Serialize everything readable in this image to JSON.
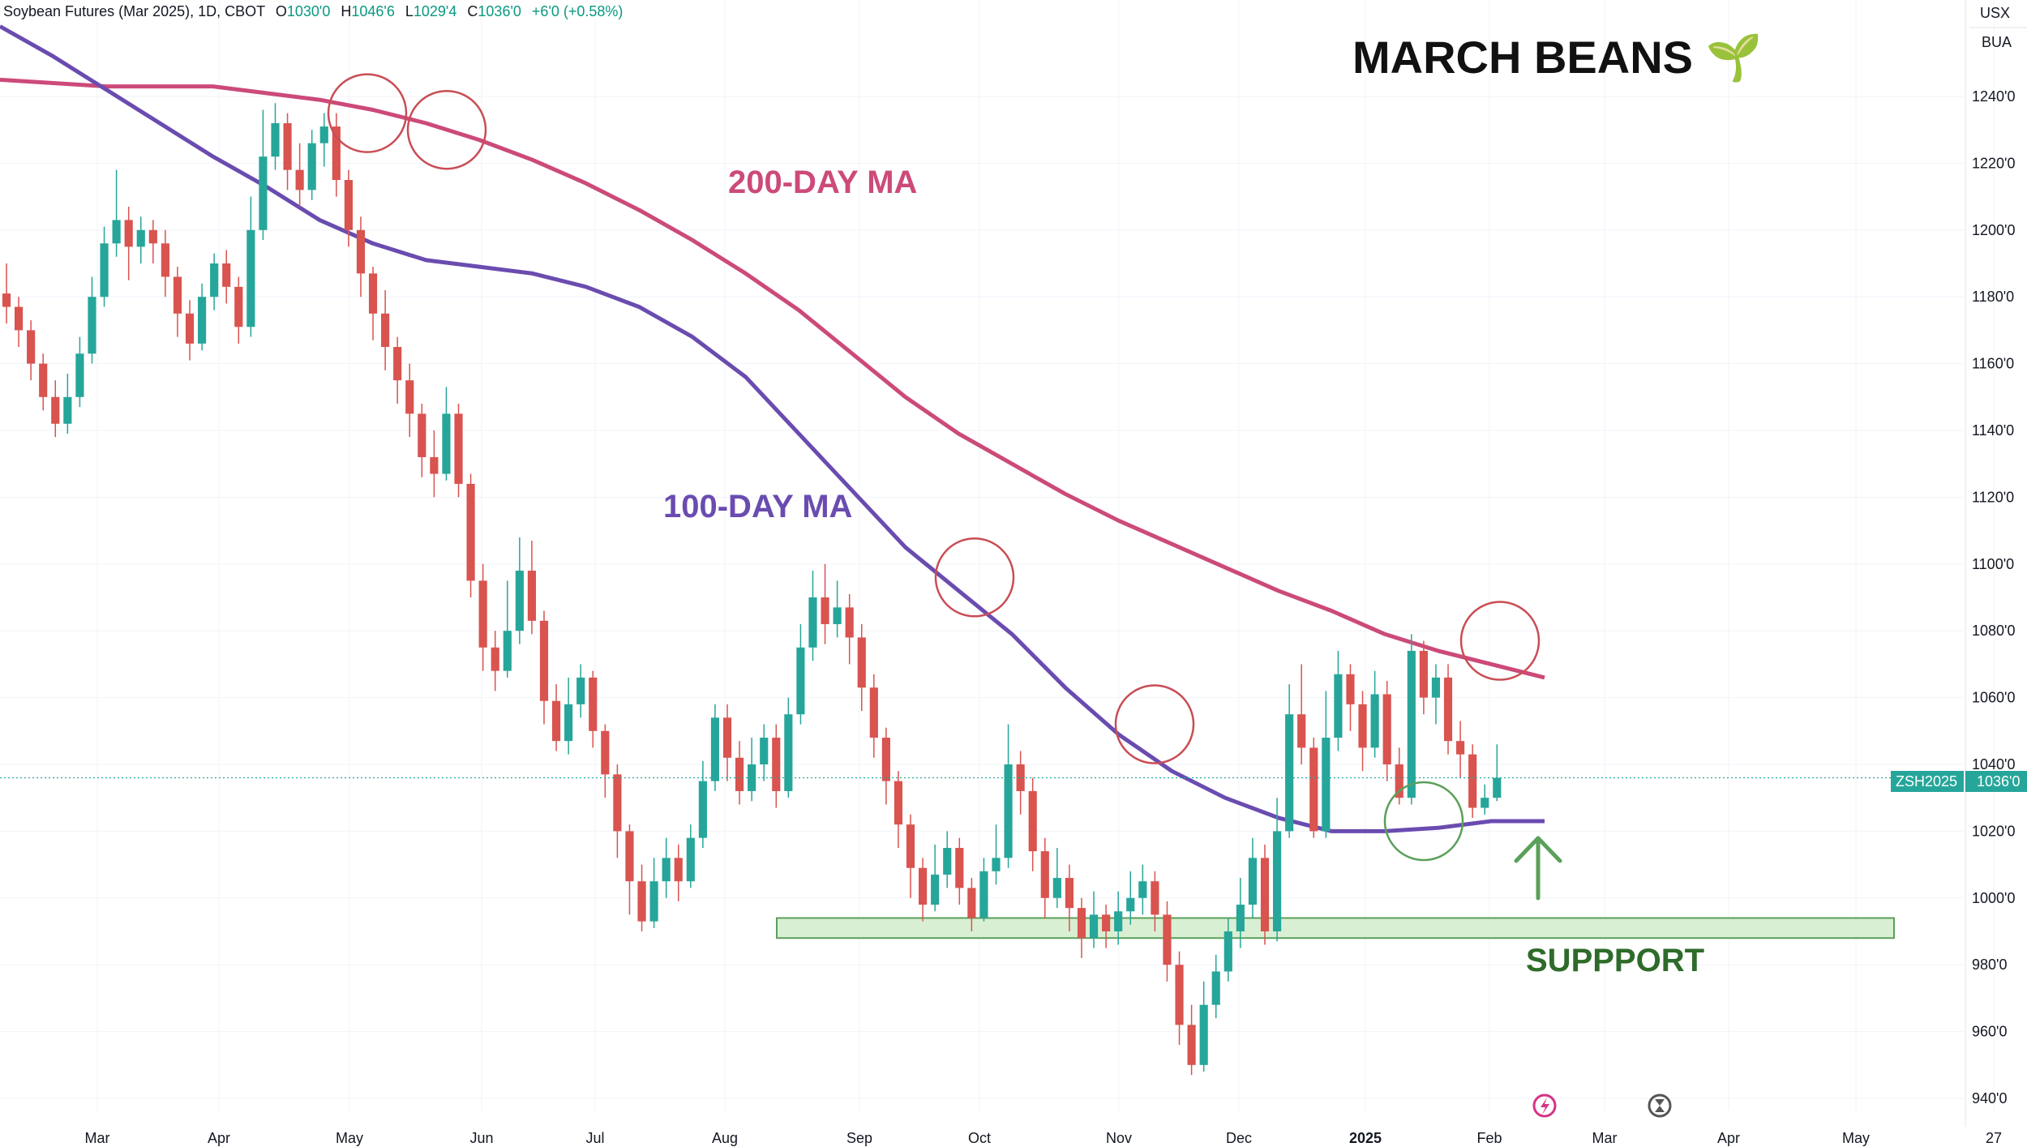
{
  "header": {
    "symbol": "Soybean Futures (Mar 2025), 1D, CBOT",
    "o_label": "O",
    "o_value": "1030'0",
    "h_label": "H",
    "h_value": "1046'6",
    "l_label": "L",
    "l_value": "1029'4",
    "c_label": "C",
    "c_value": "1036'0",
    "change": "+6'0 (+0.58%)"
  },
  "axis_badges": {
    "currency": "USX",
    "unit": "BUA"
  },
  "price_tag": {
    "symbol": "ZSH2025",
    "value": "1036'0"
  },
  "colors": {
    "up": "#26a69a",
    "down": "#d9534f",
    "ma200": "#cc4a7a",
    "ma100": "#6a4cb0",
    "circle_red": "#c94d55",
    "circle_green": "#5aa05a",
    "support_fill": "#d9efd3",
    "support_stroke": "#5aa05a"
  },
  "chart_data": {
    "type": "candlestick",
    "title": "MARCH BEANS 🌱",
    "annotations": {
      "ma200_label": "200-DAY MA",
      "ma100_label": "100-DAY MA",
      "support_label": "SUPPPORT"
    },
    "y_ticks": [
      "1240'0",
      "1220'0",
      "1200'0",
      "1180'0",
      "1160'0",
      "1140'0",
      "1120'0",
      "1100'0",
      "1080'0",
      "1060'0",
      "1040'0",
      "1020'0",
      "1000'0",
      "980'0",
      "960'0",
      "940'0"
    ],
    "x_ticks": [
      {
        "label": "Mar",
        "bold": false
      },
      {
        "label": "Apr",
        "bold": false
      },
      {
        "label": "May",
        "bold": false
      },
      {
        "label": "Jun",
        "bold": false
      },
      {
        "label": "Jul",
        "bold": false
      },
      {
        "label": "Aug",
        "bold": false
      },
      {
        "label": "Sep",
        "bold": false
      },
      {
        "label": "Oct",
        "bold": false
      },
      {
        "label": "Nov",
        "bold": false
      },
      {
        "label": "Dec",
        "bold": false
      },
      {
        "label": "2025",
        "bold": true
      },
      {
        "label": "Feb",
        "bold": false
      },
      {
        "label": "Mar",
        "bold": false
      },
      {
        "label": "Apr",
        "bold": false
      },
      {
        "label": "May",
        "bold": false
      },
      {
        "label": "27",
        "bold": false
      }
    ],
    "y_range": [
      936,
      1262
    ],
    "last_price": 1036,
    "support_zone": [
      988,
      994
    ],
    "ma200": [
      1245,
      1244,
      1243,
      1243,
      1243,
      1241,
      1239,
      1236,
      1232,
      1227,
      1221,
      1214,
      1206,
      1197,
      1187,
      1176,
      1163,
      1150,
      1139,
      1130,
      1121,
      1113,
      1106,
      1099,
      1092,
      1086,
      1079,
      1074,
      1070,
      1066
    ],
    "ma100": [
      1261,
      1252,
      1242,
      1232,
      1222,
      1213,
      1203,
      1196,
      1191,
      1189,
      1187,
      1183,
      1177,
      1168,
      1156,
      1139,
      1122,
      1105,
      1092,
      1079,
      1063,
      1049,
      1038,
      1030,
      1024,
      1020,
      1020,
      1021,
      1023,
      1023
    ],
    "candles": [
      {
        "o": 1181,
        "c": 1177,
        "h": 1190,
        "l": 1172
      },
      {
        "o": 1177,
        "c": 1170,
        "h": 1180,
        "l": 1165
      },
      {
        "o": 1170,
        "c": 1160,
        "h": 1173,
        "l": 1155
      },
      {
        "o": 1160,
        "c": 1150,
        "h": 1163,
        "l": 1146
      },
      {
        "o": 1150,
        "c": 1142,
        "h": 1155,
        "l": 1138
      },
      {
        "o": 1142,
        "c": 1150,
        "h": 1157,
        "l": 1139
      },
      {
        "o": 1150,
        "c": 1163,
        "h": 1168,
        "l": 1147
      },
      {
        "o": 1163,
        "c": 1180,
        "h": 1186,
        "l": 1160
      },
      {
        "o": 1180,
        "c": 1196,
        "h": 1201,
        "l": 1177
      },
      {
        "o": 1196,
        "c": 1203,
        "h": 1218,
        "l": 1192
      },
      {
        "o": 1203,
        "c": 1195,
        "h": 1207,
        "l": 1185
      },
      {
        "o": 1195,
        "c": 1200,
        "h": 1204,
        "l": 1190
      },
      {
        "o": 1200,
        "c": 1196,
        "h": 1203,
        "l": 1190
      },
      {
        "o": 1196,
        "c": 1186,
        "h": 1200,
        "l": 1180
      },
      {
        "o": 1186,
        "c": 1175,
        "h": 1189,
        "l": 1168
      },
      {
        "o": 1175,
        "c": 1166,
        "h": 1179,
        "l": 1161
      },
      {
        "o": 1166,
        "c": 1180,
        "h": 1184,
        "l": 1164
      },
      {
        "o": 1180,
        "c": 1190,
        "h": 1193,
        "l": 1176
      },
      {
        "o": 1190,
        "c": 1183,
        "h": 1194,
        "l": 1178
      },
      {
        "o": 1183,
        "c": 1171,
        "h": 1186,
        "l": 1166
      },
      {
        "o": 1171,
        "c": 1200,
        "h": 1210,
        "l": 1168
      },
      {
        "o": 1200,
        "c": 1222,
        "h": 1236,
        "l": 1197
      },
      {
        "o": 1222,
        "c": 1232,
        "h": 1238,
        "l": 1218
      },
      {
        "o": 1232,
        "c": 1218,
        "h": 1235,
        "l": 1212
      },
      {
        "o": 1218,
        "c": 1212,
        "h": 1226,
        "l": 1207
      },
      {
        "o": 1212,
        "c": 1226,
        "h": 1230,
        "l": 1209
      },
      {
        "o": 1226,
        "c": 1231,
        "h": 1235,
        "l": 1219
      },
      {
        "o": 1231,
        "c": 1215,
        "h": 1235,
        "l": 1210
      },
      {
        "o": 1215,
        "c": 1200,
        "h": 1218,
        "l": 1195
      },
      {
        "o": 1200,
        "c": 1187,
        "h": 1204,
        "l": 1180
      },
      {
        "o": 1187,
        "c": 1175,
        "h": 1189,
        "l": 1167
      },
      {
        "o": 1175,
        "c": 1165,
        "h": 1182,
        "l": 1158
      },
      {
        "o": 1165,
        "c": 1155,
        "h": 1168,
        "l": 1148
      },
      {
        "o": 1155,
        "c": 1145,
        "h": 1160,
        "l": 1138
      },
      {
        "o": 1145,
        "c": 1132,
        "h": 1148,
        "l": 1126
      },
      {
        "o": 1132,
        "c": 1127,
        "h": 1140,
        "l": 1120
      },
      {
        "o": 1127,
        "c": 1145,
        "h": 1153,
        "l": 1125
      },
      {
        "o": 1145,
        "c": 1124,
        "h": 1148,
        "l": 1120
      },
      {
        "o": 1124,
        "c": 1095,
        "h": 1127,
        "l": 1090
      },
      {
        "o": 1095,
        "c": 1075,
        "h": 1100,
        "l": 1068
      },
      {
        "o": 1075,
        "c": 1068,
        "h": 1080,
        "l": 1062
      },
      {
        "o": 1068,
        "c": 1080,
        "h": 1095,
        "l": 1066
      },
      {
        "o": 1080,
        "c": 1098,
        "h": 1108,
        "l": 1076
      },
      {
        "o": 1098,
        "c": 1083,
        "h": 1107,
        "l": 1079
      },
      {
        "o": 1083,
        "c": 1059,
        "h": 1086,
        "l": 1052
      },
      {
        "o": 1059,
        "c": 1047,
        "h": 1064,
        "l": 1044
      },
      {
        "o": 1047,
        "c": 1058,
        "h": 1066,
        "l": 1043
      },
      {
        "o": 1058,
        "c": 1066,
        "h": 1070,
        "l": 1054
      },
      {
        "o": 1066,
        "c": 1050,
        "h": 1068,
        "l": 1045
      },
      {
        "o": 1050,
        "c": 1037,
        "h": 1052,
        "l": 1030
      },
      {
        "o": 1037,
        "c": 1020,
        "h": 1040,
        "l": 1012
      },
      {
        "o": 1020,
        "c": 1005,
        "h": 1022,
        "l": 995
      },
      {
        "o": 1005,
        "c": 993,
        "h": 1010,
        "l": 990
      },
      {
        "o": 993,
        "c": 1005,
        "h": 1012,
        "l": 991
      },
      {
        "o": 1005,
        "c": 1012,
        "h": 1018,
        "l": 1000
      },
      {
        "o": 1012,
        "c": 1005,
        "h": 1016,
        "l": 999
      },
      {
        "o": 1005,
        "c": 1018,
        "h": 1022,
        "l": 1003
      },
      {
        "o": 1018,
        "c": 1035,
        "h": 1041,
        "l": 1015
      },
      {
        "o": 1035,
        "c": 1054,
        "h": 1058,
        "l": 1032
      },
      {
        "o": 1054,
        "c": 1042,
        "h": 1058,
        "l": 1035
      },
      {
        "o": 1042,
        "c": 1032,
        "h": 1047,
        "l": 1028
      },
      {
        "o": 1032,
        "c": 1040,
        "h": 1048,
        "l": 1029
      },
      {
        "o": 1040,
        "c": 1048,
        "h": 1052,
        "l": 1035
      },
      {
        "o": 1048,
        "c": 1032,
        "h": 1052,
        "l": 1027
      },
      {
        "o": 1032,
        "c": 1055,
        "h": 1060,
        "l": 1030
      },
      {
        "o": 1055,
        "c": 1075,
        "h": 1082,
        "l": 1052
      },
      {
        "o": 1075,
        "c": 1090,
        "h": 1098,
        "l": 1071
      },
      {
        "o": 1090,
        "c": 1082,
        "h": 1100,
        "l": 1076
      },
      {
        "o": 1082,
        "c": 1087,
        "h": 1095,
        "l": 1078
      },
      {
        "o": 1087,
        "c": 1078,
        "h": 1091,
        "l": 1070
      },
      {
        "o": 1078,
        "c": 1063,
        "h": 1082,
        "l": 1056
      },
      {
        "o": 1063,
        "c": 1048,
        "h": 1067,
        "l": 1042
      },
      {
        "o": 1048,
        "c": 1035,
        "h": 1051,
        "l": 1028
      },
      {
        "o": 1035,
        "c": 1022,
        "h": 1038,
        "l": 1015
      },
      {
        "o": 1022,
        "c": 1009,
        "h": 1025,
        "l": 1000
      },
      {
        "o": 1009,
        "c": 998,
        "h": 1012,
        "l": 993
      },
      {
        "o": 998,
        "c": 1007,
        "h": 1016,
        "l": 996
      },
      {
        "o": 1007,
        "c": 1015,
        "h": 1020,
        "l": 1003
      },
      {
        "o": 1015,
        "c": 1003,
        "h": 1018,
        "l": 998
      },
      {
        "o": 1003,
        "c": 994,
        "h": 1006,
        "l": 990
      },
      {
        "o": 994,
        "c": 1008,
        "h": 1012,
        "l": 993
      },
      {
        "o": 1008,
        "c": 1012,
        "h": 1022,
        "l": 1004
      },
      {
        "o": 1012,
        "c": 1040,
        "h": 1052,
        "l": 1009
      },
      {
        "o": 1040,
        "c": 1032,
        "h": 1044,
        "l": 1025
      },
      {
        "o": 1032,
        "c": 1014,
        "h": 1036,
        "l": 1008
      },
      {
        "o": 1014,
        "c": 1000,
        "h": 1018,
        "l": 994
      },
      {
        "o": 1000,
        "c": 1006,
        "h": 1015,
        "l": 997
      },
      {
        "o": 1006,
        "c": 997,
        "h": 1010,
        "l": 990
      },
      {
        "o": 997,
        "c": 988,
        "h": 1000,
        "l": 982
      },
      {
        "o": 988,
        "c": 995,
        "h": 1002,
        "l": 985
      },
      {
        "o": 995,
        "c": 990,
        "h": 998,
        "l": 985
      },
      {
        "o": 990,
        "c": 996,
        "h": 1002,
        "l": 986
      },
      {
        "o": 996,
        "c": 1000,
        "h": 1008,
        "l": 992
      },
      {
        "o": 1000,
        "c": 1005,
        "h": 1010,
        "l": 995
      },
      {
        "o": 1005,
        "c": 995,
        "h": 1008,
        "l": 990
      },
      {
        "o": 995,
        "c": 980,
        "h": 999,
        "l": 975
      },
      {
        "o": 980,
        "c": 962,
        "h": 984,
        "l": 956
      },
      {
        "o": 962,
        "c": 950,
        "h": 968,
        "l": 947
      },
      {
        "o": 950,
        "c": 968,
        "h": 975,
        "l": 948
      },
      {
        "o": 968,
        "c": 978,
        "h": 983,
        "l": 964
      },
      {
        "o": 978,
        "c": 990,
        "h": 994,
        "l": 975
      },
      {
        "o": 990,
        "c": 998,
        "h": 1006,
        "l": 985
      },
      {
        "o": 998,
        "c": 1012,
        "h": 1018,
        "l": 994
      },
      {
        "o": 1012,
        "c": 990,
        "h": 1016,
        "l": 986
      },
      {
        "o": 990,
        "c": 1020,
        "h": 1030,
        "l": 987
      },
      {
        "o": 1020,
        "c": 1055,
        "h": 1064,
        "l": 1018
      },
      {
        "o": 1055,
        "c": 1045,
        "h": 1070,
        "l": 1040
      },
      {
        "o": 1045,
        "c": 1020,
        "h": 1048,
        "l": 1018
      },
      {
        "o": 1020,
        "c": 1048,
        "h": 1062,
        "l": 1018
      },
      {
        "o": 1048,
        "c": 1067,
        "h": 1074,
        "l": 1044
      },
      {
        "o": 1067,
        "c": 1058,
        "h": 1070,
        "l": 1050
      },
      {
        "o": 1058,
        "c": 1045,
        "h": 1062,
        "l": 1038
      },
      {
        "o": 1045,
        "c": 1061,
        "h": 1068,
        "l": 1042
      },
      {
        "o": 1061,
        "c": 1040,
        "h": 1065,
        "l": 1035
      },
      {
        "o": 1040,
        "c": 1030,
        "h": 1045,
        "l": 1028
      },
      {
        "o": 1030,
        "c": 1074,
        "h": 1079,
        "l": 1028
      },
      {
        "o": 1074,
        "c": 1060,
        "h": 1077,
        "l": 1055
      },
      {
        "o": 1060,
        "c": 1066,
        "h": 1070,
        "l": 1052
      },
      {
        "o": 1066,
        "c": 1047,
        "h": 1070,
        "l": 1043
      },
      {
        "o": 1047,
        "c": 1043,
        "h": 1053,
        "l": 1036
      },
      {
        "o": 1043,
        "c": 1027,
        "h": 1046,
        "l": 1024
      },
      {
        "o": 1027,
        "c": 1030,
        "h": 1034,
        "l": 1025
      },
      {
        "o": 1030,
        "c": 1036,
        "h": 1046,
        "l": 1029
      }
    ]
  }
}
